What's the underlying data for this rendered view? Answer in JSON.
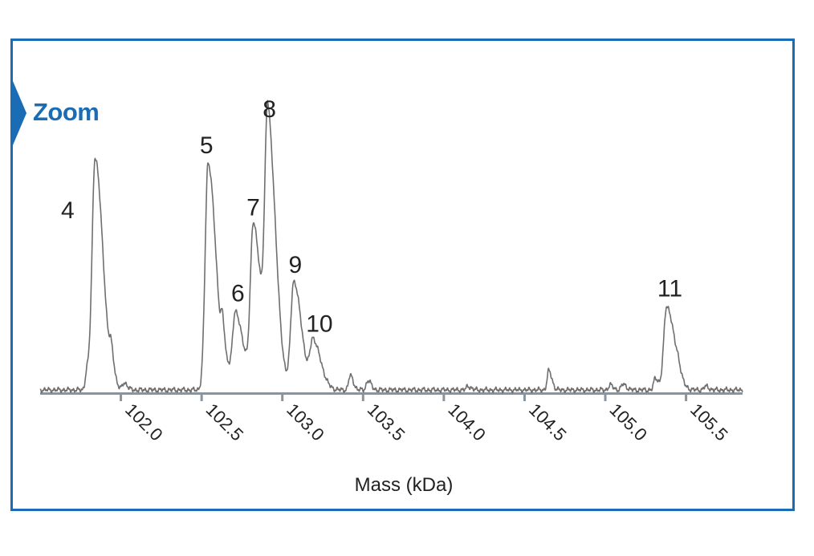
{
  "panel": {
    "label": "Zoom",
    "frame_color": "#1a6db4"
  },
  "chart_data": {
    "type": "line",
    "title": "",
    "xlabel": "Mass (kDa)",
    "ylabel": "",
    "xlim": [
      101.5,
      105.85
    ],
    "ylim": [
      0,
      100
    ],
    "x_ticks": [
      "102.0",
      "102.5",
      "103.0",
      "103.5",
      "104.0",
      "104.5",
      "105.0",
      "105.5"
    ],
    "grid": false,
    "line_color": "#6f6f6f",
    "axis_color": "#8795a1",
    "peaks": [
      {
        "label": "4",
        "mass": 101.84,
        "height": 97
      },
      {
        "label": "5",
        "mass": 102.54,
        "height": 95
      },
      {
        "label": "6",
        "mass": 102.71,
        "height": 32
      },
      {
        "label": "7",
        "mass": 102.82,
        "height": 68
      },
      {
        "label": "8",
        "mass": 102.91,
        "height": 109
      },
      {
        "label": "9",
        "mass": 103.07,
        "height": 45
      },
      {
        "label": "10",
        "mass": 103.19,
        "height": 20
      },
      {
        "label": "11",
        "mass": 105.38,
        "height": 35
      }
    ],
    "minor_peaks": [
      {
        "mass": 101.79,
        "height": 8
      },
      {
        "mass": 101.94,
        "height": 10
      },
      {
        "mass": 102.02,
        "height": 3
      },
      {
        "mass": 102.63,
        "height": 16
      },
      {
        "mass": 102.67,
        "height": 5
      },
      {
        "mass": 103.42,
        "height": 6
      },
      {
        "mass": 103.53,
        "height": 4
      },
      {
        "mass": 104.15,
        "height": 1.5
      },
      {
        "mass": 104.65,
        "height": 8
      },
      {
        "mass": 105.03,
        "height": 2
      },
      {
        "mass": 105.11,
        "height": 2.5
      },
      {
        "mass": 105.31,
        "height": 5
      },
      {
        "mass": 105.45,
        "height": 3
      },
      {
        "mass": 105.62,
        "height": 1.5
      }
    ]
  }
}
